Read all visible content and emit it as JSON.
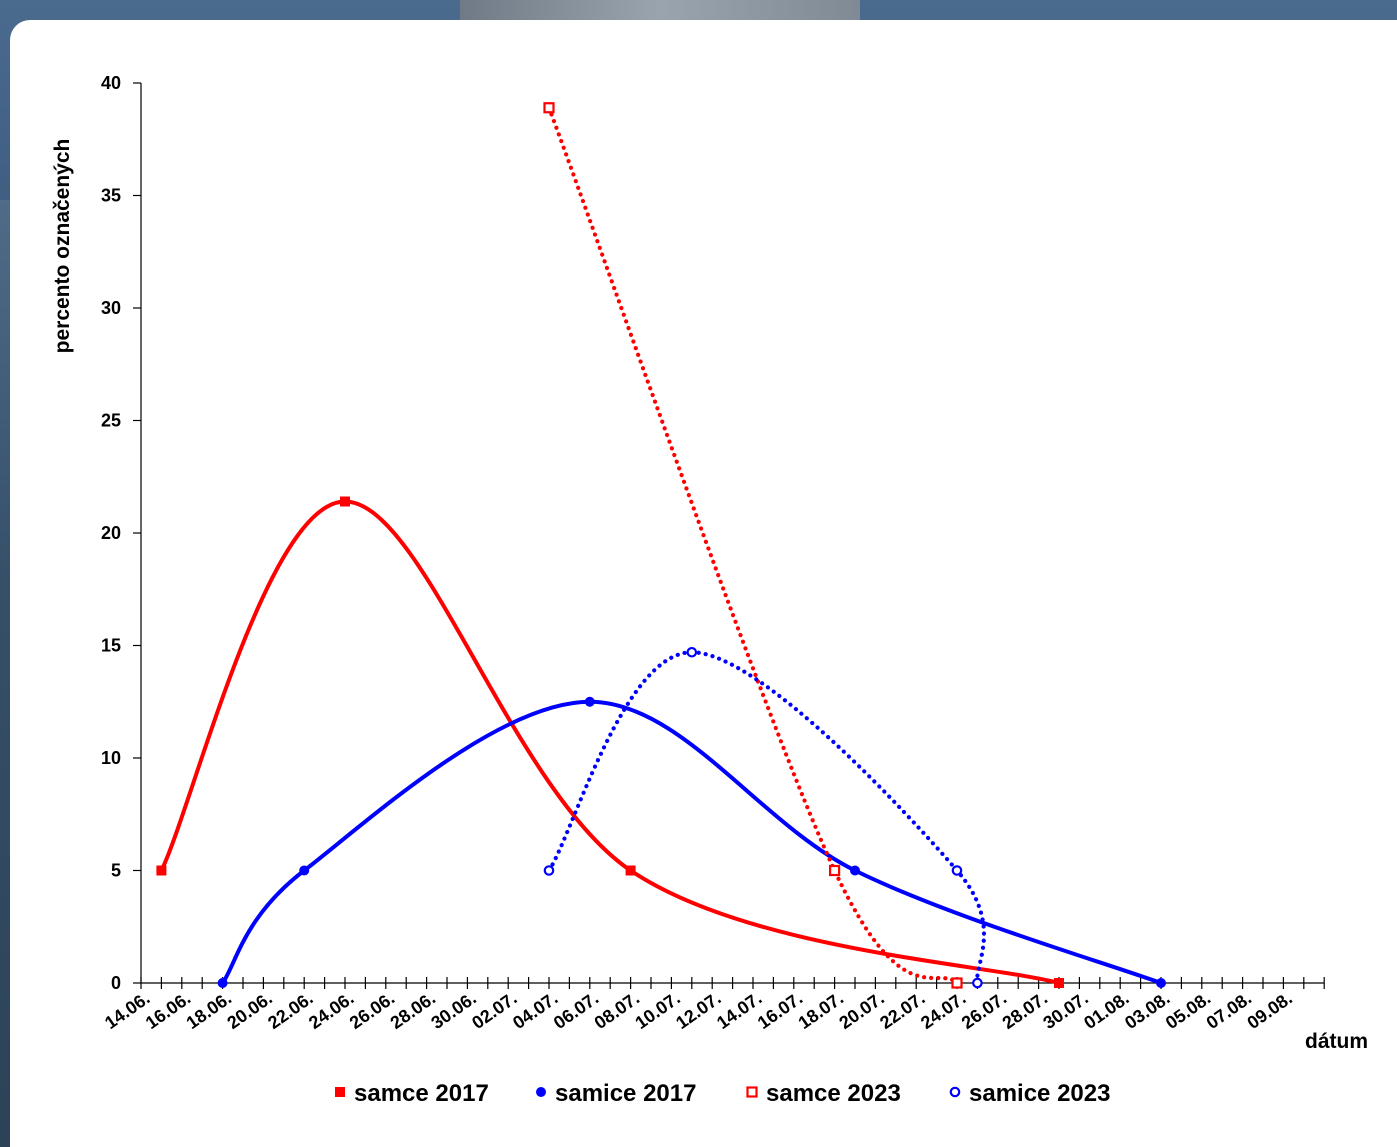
{
  "chart_data": {
    "type": "line",
    "xlabel": "dátum",
    "ylabel": "percento označených",
    "ylim": [
      0,
      40
    ],
    "yticks": [
      0,
      5,
      10,
      15,
      20,
      25,
      30,
      35,
      40
    ],
    "xlim": [
      "2020-06-14",
      "2020-08-11"
    ],
    "x_tick_labels": [
      "14.06.",
      "16.06.",
      "18.06.",
      "20.06.",
      "22.06.",
      "24.06.",
      "26.06.",
      "28.06.",
      "30.06.",
      "02.07.",
      "04.07.",
      "06.07.",
      "08.07.",
      "10.07.",
      "12.07.",
      "14.07.",
      "16.07.",
      "18.07.",
      "20.07.",
      "22.07.",
      "24.07.",
      "26.07.",
      "28.07.",
      "30.07.",
      "01.08.",
      "03.08.",
      "05.08.",
      "07.08.",
      "09.08."
    ],
    "legend_position": "bottom",
    "series": [
      {
        "name": "samce 2017",
        "color": "#ff0000",
        "line_style": "solid",
        "marker": "filled-square",
        "points": [
          {
            "x": "2020-06-15",
            "y": 5
          },
          {
            "x": "2020-06-24",
            "y": 21.4
          },
          {
            "x": "2020-07-08",
            "y": 5
          },
          {
            "x": "2020-07-29",
            "y": 0
          }
        ]
      },
      {
        "name": "samice 2017",
        "color": "#0000ff",
        "line_style": "solid",
        "marker": "filled-circle",
        "points": [
          {
            "x": "2020-06-18",
            "y": 0
          },
          {
            "x": "2020-06-22",
            "y": 5
          },
          {
            "x": "2020-07-06",
            "y": 12.5
          },
          {
            "x": "2020-07-19",
            "y": 5
          },
          {
            "x": "2020-08-03",
            "y": 0
          }
        ]
      },
      {
        "name": "samce 2023",
        "color": "#ff0000",
        "line_style": "dotted",
        "marker": "open-square",
        "points": [
          {
            "x": "2020-07-04",
            "y": 38.9
          },
          {
            "x": "2020-07-18",
            "y": 5
          },
          {
            "x": "2020-07-24",
            "y": 0
          }
        ]
      },
      {
        "name": "samice 2023",
        "color": "#0000ff",
        "line_style": "dotted",
        "marker": "open-circle",
        "points": [
          {
            "x": "2020-07-04",
            "y": 5
          },
          {
            "x": "2020-07-11",
            "y": 14.7
          },
          {
            "x": "2020-07-24",
            "y": 5
          },
          {
            "x": "2020-07-25",
            "y": 0
          }
        ]
      }
    ]
  }
}
